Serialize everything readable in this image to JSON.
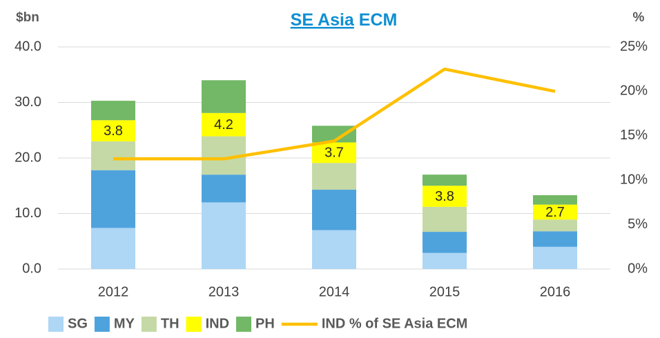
{
  "chart_data": {
    "type": "bar",
    "stacked": true,
    "title_parts": [
      "SE Asia",
      "ECM"
    ],
    "ylabel": "$bn",
    "y2label": "%",
    "categories": [
      "2012",
      "2013",
      "2014",
      "2015",
      "2016"
    ],
    "series": [
      {
        "name": "SG",
        "color": "#aed6f5",
        "values": [
          7.4,
          12.0,
          7.0,
          2.9,
          4.0
        ]
      },
      {
        "name": "MY",
        "color": "#4fa3dd",
        "values": [
          10.4,
          5.0,
          7.3,
          3.8,
          2.8
        ]
      },
      {
        "name": "TH",
        "color": "#c5d9a6",
        "values": [
          5.2,
          6.9,
          4.8,
          4.5,
          2.1
        ]
      },
      {
        "name": "IND",
        "color": "#ffff00",
        "values": [
          3.8,
          4.2,
          3.7,
          3.8,
          2.7
        ],
        "data_labels": true
      },
      {
        "name": "PH",
        "color": "#72b866",
        "values": [
          3.5,
          5.9,
          3.0,
          2.0,
          1.7
        ]
      },
      {
        "name": "IND % of SE Asia ECM",
        "type": "line",
        "axis": "y2",
        "color": "#ffc000",
        "values": [
          12.4,
          12.4,
          14.4,
          22.5,
          20.0
        ]
      }
    ],
    "ylim": [
      0,
      40
    ],
    "yticks": [
      {
        "value": 0,
        "label": "0.0"
      },
      {
        "value": 10,
        "label": "10.0"
      },
      {
        "value": 20,
        "label": "20.0"
      },
      {
        "value": 30,
        "label": "30.0"
      },
      {
        "value": 40,
        "label": "40.0"
      }
    ],
    "y2lim": [
      0,
      25
    ],
    "y2ticks": [
      {
        "value": 0,
        "label": "0%"
      },
      {
        "value": 5,
        "label": "5%"
      },
      {
        "value": 10,
        "label": "10%"
      },
      {
        "value": 15,
        "label": "15%"
      },
      {
        "value": 20,
        "label": "20%"
      },
      {
        "value": 25,
        "label": "25%"
      }
    ],
    "grid": true
  }
}
